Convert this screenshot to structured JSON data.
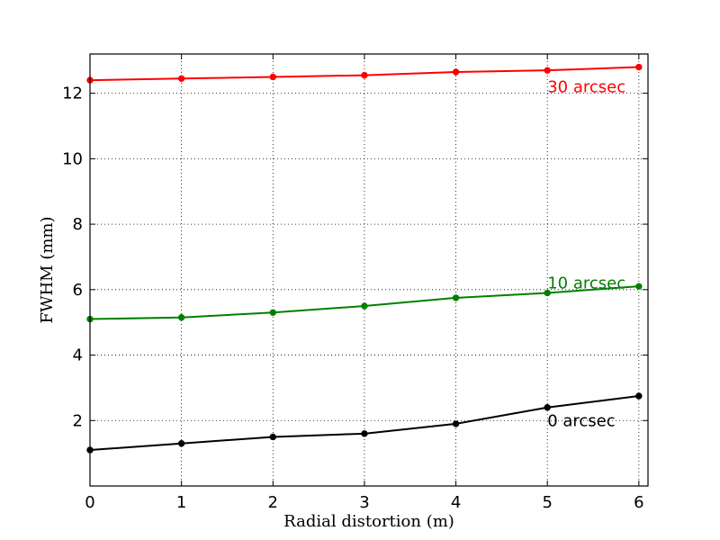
{
  "chart_data": {
    "type": "line",
    "title": "",
    "xlabel": "Radial distortion (m)",
    "ylabel": "FWHM (mm)",
    "xlim": [
      0,
      6.1
    ],
    "ylim": [
      0,
      13.2
    ],
    "xticks": [
      0,
      1,
      2,
      3,
      4,
      5,
      6
    ],
    "yticks": [
      2,
      4,
      6,
      8,
      10,
      12
    ],
    "grid": true,
    "x": [
      0,
      1,
      2,
      3,
      4,
      5,
      6
    ],
    "series": [
      {
        "label": "30 arcsec",
        "color": "#ff0000",
        "values": [
          12.4,
          12.45,
          12.5,
          12.55,
          12.65,
          12.7,
          12.8
        ],
        "label_at": [
          5,
          12.2
        ]
      },
      {
        "label": "10 arcsec",
        "color": "#008000",
        "values": [
          5.1,
          5.15,
          5.3,
          5.5,
          5.75,
          5.9,
          6.1
        ],
        "label_at": [
          5,
          6.2
        ]
      },
      {
        "label": "0 arcsec",
        "color": "#000000",
        "values": [
          1.1,
          1.3,
          1.5,
          1.6,
          1.9,
          2.4,
          2.75
        ],
        "label_at": [
          5,
          2.0
        ]
      }
    ]
  }
}
